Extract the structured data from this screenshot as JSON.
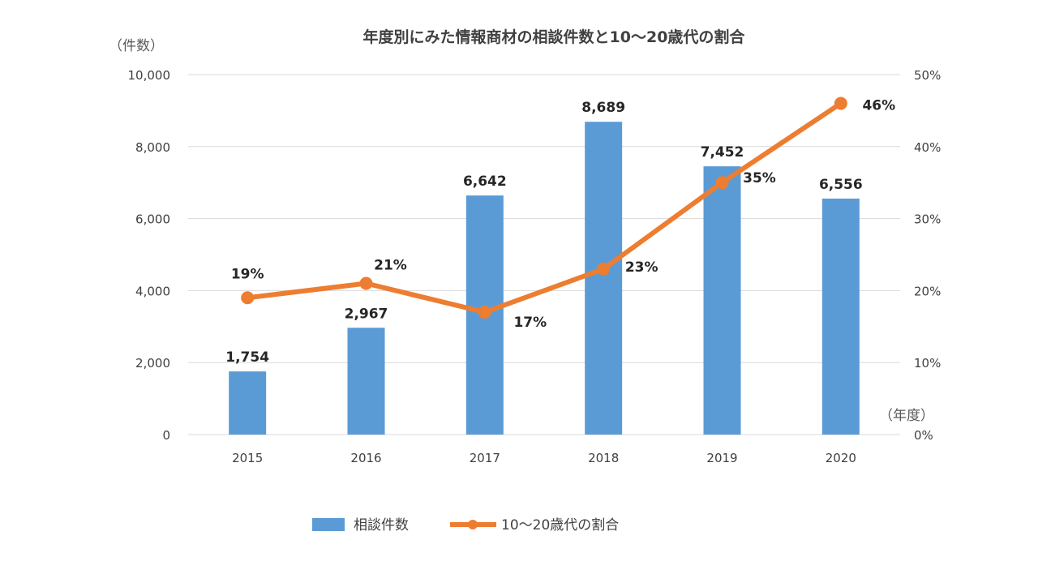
{
  "chart_data": {
    "type": "bar",
    "title": "年度別にみた情報商材の相談件数と10～20歳代の割合",
    "y_left_unit": "（件数）",
    "y_right_unit": "",
    "x_unit": "（年度）",
    "categories": [
      "2015",
      "2016",
      "2017",
      "2018",
      "2019",
      "2020"
    ],
    "y_left_ticks": [
      "0",
      "2,000",
      "4,000",
      "6,000",
      "8,000",
      "10,000"
    ],
    "y_right_ticks": [
      "0%",
      "10%",
      "20%",
      "30%",
      "40%",
      "50%"
    ],
    "ylim_left": [
      0,
      10000
    ],
    "ylim_right": [
      0,
      50
    ],
    "grid": true,
    "legend_position": "bottom",
    "series": [
      {
        "name": "相談件数",
        "type": "bar",
        "axis": "left",
        "color": "#5b9bd5",
        "values": [
          1754,
          2967,
          6642,
          8689,
          7452,
          6556
        ],
        "labels": [
          "1,754",
          "2,967",
          "6,642",
          "8,689",
          "7,452",
          "6,556"
        ]
      },
      {
        "name": "10～20歳代の割合",
        "type": "line",
        "axis": "right",
        "color": "#ed7d31",
        "values": [
          19,
          21,
          17,
          23,
          35,
          46
        ],
        "labels": [
          "19%",
          "21%",
          "17%",
          "23%",
          "35%",
          "46%"
        ]
      }
    ]
  }
}
